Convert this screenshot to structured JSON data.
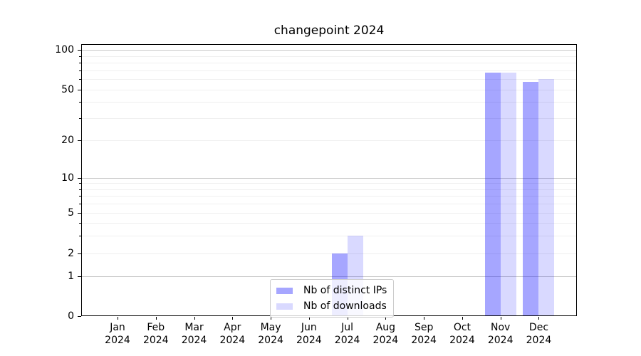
{
  "figure": {
    "background": "#ffffff"
  },
  "chart_data": {
    "type": "bar",
    "title": "changepoint 2024",
    "categories": [
      "Jan",
      "Feb",
      "Mar",
      "Apr",
      "May",
      "Jun",
      "Jul",
      "Aug",
      "Sep",
      "Oct",
      "Nov",
      "Dec"
    ],
    "x_year": "2024",
    "series": [
      {
        "name": "Nb of distinct IPs",
        "color": "rgba(0,0,255,0.35)",
        "color_on_white_hex": "#a6a6ff",
        "values": [
          0,
          0,
          0,
          0,
          0,
          0,
          2,
          0,
          0,
          0,
          67,
          57
        ]
      },
      {
        "name": "Nb of downloads",
        "color": "rgba(0,0,255,0.15)",
        "color_on_white_hex": "#d9d9ff",
        "values": [
          0,
          0,
          0,
          0,
          0,
          0,
          3,
          0,
          0,
          0,
          67,
          60
        ]
      }
    ],
    "yscale": "symlog (log above 1, linear 0-1, 0 at baseline)",
    "ylim": [
      0,
      100
    ],
    "ytick_labels": [
      "100",
      "50",
      "20",
      "10",
      "5",
      "2",
      "1",
      "0"
    ],
    "ytick_values": [
      100,
      50,
      20,
      10,
      5,
      2,
      1,
      0
    ],
    "major_gridline_values": [
      1,
      10,
      100
    ],
    "minor_gridline_values": [
      2,
      3,
      4,
      5,
      6,
      7,
      8,
      9,
      20,
      30,
      40,
      50,
      60,
      70,
      80,
      90
    ],
    "grid": "horizontal major+minor, on",
    "legend": {
      "entries": [
        "Nb of distinct IPs",
        "Nb of downloads"
      ],
      "position": "lower center, inside axes"
    },
    "colors": {
      "major_grid": "#c9c9c9",
      "minor_grid": "#efefef",
      "axis": "#000000",
      "text": "#000000",
      "legend_border": "#cccccc"
    }
  }
}
